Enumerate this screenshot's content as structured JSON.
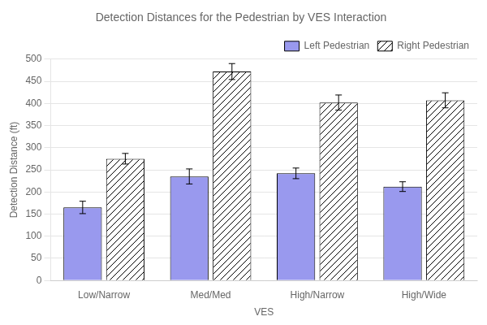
{
  "chart_data": {
    "type": "bar",
    "title": "Detection Distances for the Pedestrian by VES Interaction",
    "xlabel": "VES",
    "ylabel": "Detection Distance (ft)",
    "categories": [
      "Low/Narrow",
      "Med/Med",
      "High/Narrow",
      "High/Wide"
    ],
    "series": [
      {
        "name": "Left Pedestrian",
        "color": "#9999ee",
        "values": [
          165,
          235,
          242,
          212
        ],
        "errors": [
          14,
          17,
          12,
          11
        ]
      },
      {
        "name": "Right Pedestrian",
        "color": "#ffffff",
        "values": [
          275,
          472,
          402,
          407
        ],
        "errors": [
          12,
          18,
          17,
          17
        ]
      }
    ],
    "ylim": [
      0,
      500
    ],
    "yticks": [
      0,
      50,
      100,
      150,
      200,
      250,
      300,
      350,
      400,
      450,
      500
    ],
    "grid": true,
    "legend": "upper right"
  }
}
